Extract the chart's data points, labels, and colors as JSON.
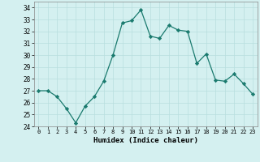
{
  "x": [
    0,
    1,
    2,
    3,
    4,
    5,
    6,
    7,
    8,
    9,
    10,
    11,
    12,
    13,
    14,
    15,
    16,
    17,
    18,
    19,
    20,
    21,
    22,
    23
  ],
  "y": [
    27.0,
    27.0,
    26.5,
    25.5,
    24.3,
    25.7,
    26.5,
    27.8,
    30.0,
    32.7,
    32.9,
    33.8,
    31.6,
    31.4,
    32.5,
    32.1,
    32.0,
    29.3,
    30.1,
    27.9,
    27.8,
    28.4,
    27.6,
    26.7
  ],
  "line_color": "#1a7a6e",
  "marker": "D",
  "marker_size": 2.2,
  "bg_color": "#d4f0f0",
  "grid_color": "#b8dede",
  "xlabel": "Humidex (Indice chaleur)",
  "ylim": [
    24,
    34.5
  ],
  "xlim": [
    -0.5,
    23.5
  ],
  "yticks": [
    24,
    25,
    26,
    27,
    28,
    29,
    30,
    31,
    32,
    33,
    34
  ],
  "xtick_labels": [
    "0",
    "1",
    "2",
    "3",
    "4",
    "5",
    "6",
    "7",
    "8",
    "9",
    "10",
    "11",
    "12",
    "13",
    "14",
    "15",
    "16",
    "17",
    "18",
    "19",
    "20",
    "21",
    "22",
    "23"
  ]
}
